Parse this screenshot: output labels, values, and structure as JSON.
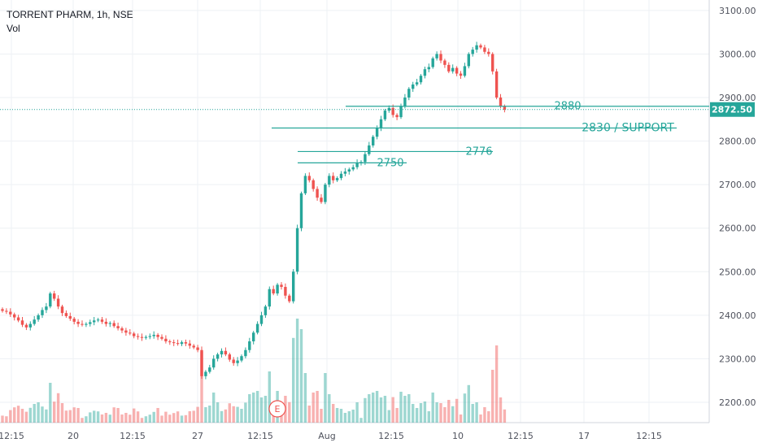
{
  "header": {
    "symbol": "TORRENT PHARM, 1h, NSE",
    "volume_label": "Vol"
  },
  "colors": {
    "up": "#26a69a",
    "down": "#ef5350",
    "line": "#26a69a",
    "grid": "#eef1f4",
    "axis_text": "#50535e"
  },
  "earnings_marker": {
    "label": "E"
  },
  "chart_data": {
    "type": "candlestick",
    "title": "",
    "y_axis": {
      "ticks": [
        2200,
        2300,
        2400,
        2500,
        2600,
        2700,
        2800,
        2900,
        3000,
        3100
      ],
      "tick_labels": [
        "2200.00",
        "2300.00",
        "2400.00",
        "2500.00",
        "2600.00",
        "2700.00",
        "2800.00",
        "2900.00",
        "3000.00",
        "3100.00"
      ],
      "range": [
        2170,
        3130
      ],
      "position": "right"
    },
    "x_axis": {
      "labels": [
        "12:15",
        "20",
        "12:15",
        "27",
        "12:15",
        "Aug",
        "12:15",
        "10",
        "12:15",
        "17",
        "12:15"
      ]
    },
    "last_price": {
      "value": 2872.5,
      "label": "2872.50"
    },
    "levels": [
      {
        "value": 2880,
        "label": "2880"
      },
      {
        "value": 2830,
        "label": "2830 / SUPPORT"
      },
      {
        "value": 2776,
        "label": "2776"
      },
      {
        "value": 2750,
        "label": "2750"
      }
    ],
    "closes": [
      2410,
      2408,
      2402,
      2395,
      2388,
      2378,
      2372,
      2380,
      2390,
      2400,
      2412,
      2420,
      2450,
      2438,
      2420,
      2405,
      2398,
      2392,
      2385,
      2380,
      2378,
      2380,
      2384,
      2388,
      2390,
      2385,
      2380,
      2382,
      2375,
      2370,
      2365,
      2360,
      2358,
      2352,
      2350,
      2348,
      2350,
      2352,
      2355,
      2350,
      2346,
      2340,
      2338,
      2336,
      2334,
      2338,
      2335,
      2330,
      2326,
      2320,
      2260,
      2270,
      2280,
      2300,
      2310,
      2318,
      2310,
      2298,
      2290,
      2296,
      2306,
      2320,
      2340,
      2360,
      2380,
      2400,
      2420,
      2460,
      2450,
      2470,
      2465,
      2445,
      2432,
      2500,
      2600,
      2680,
      2720,
      2710,
      2690,
      2670,
      2660,
      2700,
      2720,
      2710,
      2715,
      2725,
      2730,
      2735,
      2740,
      2750,
      2752,
      2770,
      2790,
      2810,
      2830,
      2850,
      2870,
      2876,
      2860,
      2855,
      2880,
      2900,
      2920,
      2930,
      2935,
      2950,
      2965,
      2970,
      2990,
      3000,
      2985,
      2975,
      2960,
      2968,
      2955,
      2950,
      2972,
      3000,
      3010,
      3020,
      3015,
      3005,
      3000,
      2960,
      2900,
      2880,
      2872
    ]
  }
}
